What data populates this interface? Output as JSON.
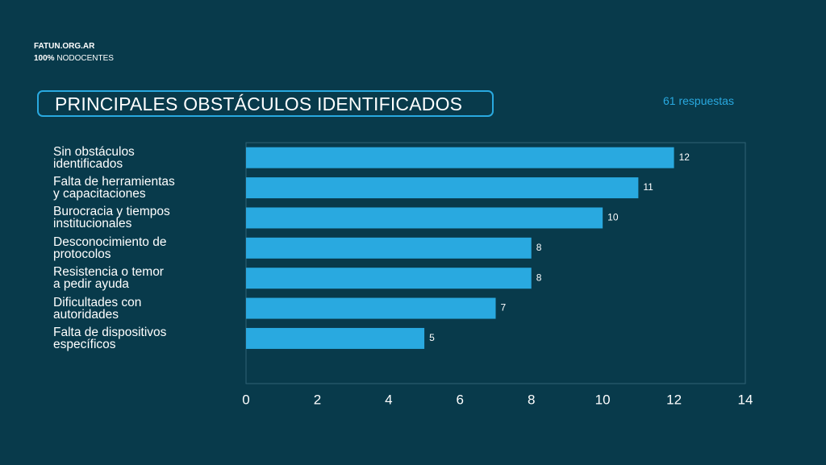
{
  "header": {
    "site": "FATUN.ORG.AR",
    "tag_bold": "100%",
    "tag": "NODOCENTES"
  },
  "chart_data": {
    "type": "barh",
    "title": "PRINCIPALES OBSTÁCULOS IDENTIFICADOS",
    "subtitle": "61 respuestas",
    "categories": [
      "Sin obstáculos\nidentificados",
      "Falta de herramientas\ny capacitaciones",
      "Burocracia y tiempos\ninstitucionales",
      "Desconocimiento de\nprotocolos",
      "Resistencia o temor\na pedir ayuda",
      "Dificultades con\nautoridades",
      "Falta de dispositivos\nespecíficos"
    ],
    "values": [
      12,
      11,
      10,
      8,
      8,
      7,
      5
    ],
    "color": "#29a9e0",
    "xlim": [
      0,
      14
    ],
    "xticks": [
      0,
      2,
      4,
      6,
      8,
      10,
      12,
      14
    ],
    "grid": false
  }
}
